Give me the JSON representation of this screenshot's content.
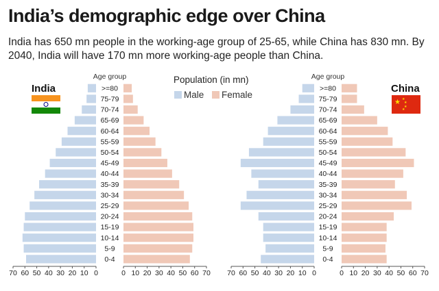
{
  "header": {
    "title": "India’s demographic edge over China",
    "subtitle": "India has 650 mn people in the working-age group of 25-65, while China has 830 mn. By 2040, India will have 170 mn more working-age people than China."
  },
  "legend": {
    "title": "Population (in mn)",
    "male": "Male",
    "female": "Female"
  },
  "colors": {
    "male": "#c5d6ea",
    "female": "#f0c8b7",
    "axis": "#555555"
  },
  "icons": [
    "india-flag-icon",
    "china-flag-icon"
  ],
  "chart_data": [
    {
      "type": "bar",
      "orientation": "horizontal-population-pyramid",
      "country": "India",
      "age_group_label": "Age group",
      "categories": [
        ">=80",
        "75-79",
        "70-74",
        "65-69",
        "60-64",
        "55-59",
        "50-54",
        "45-49",
        "40-44",
        "35-39",
        "30-34",
        "25-29",
        "20-24",
        "15-19",
        "10-14",
        "5-9",
        "0-4"
      ],
      "series": [
        {
          "name": "Male",
          "values": [
            7,
            8,
            12,
            18,
            24,
            29,
            34,
            39,
            43,
            48,
            52,
            56,
            60,
            61,
            62,
            61,
            59
          ]
        },
        {
          "name": "Female",
          "values": [
            7,
            8,
            12,
            17,
            22,
            27,
            32,
            37,
            41,
            47,
            51,
            55,
            58,
            59,
            59,
            58,
            56
          ]
        }
      ],
      "xticks_male": [
        "70",
        "60",
        "50",
        "40",
        "30",
        "20",
        "10",
        "0"
      ],
      "xticks_female": [
        "0",
        "10",
        "20",
        "30",
        "40",
        "50",
        "60",
        "70"
      ],
      "xlim": [
        0,
        70
      ]
    },
    {
      "type": "bar",
      "orientation": "horizontal-population-pyramid",
      "country": "China",
      "age_group_label": "Age group",
      "categories": [
        ">=80",
        "75-79",
        "70-74",
        "65-69",
        "60-64",
        "55-59",
        "50-54",
        "45-49",
        "40-44",
        "35-39",
        "30-34",
        "25-29",
        "20-24",
        "15-19",
        "10-14",
        "5-9",
        "0-4"
      ],
      "series": [
        {
          "name": "Male",
          "values": [
            10,
            13,
            20,
            31,
            39,
            43,
            55,
            62,
            53,
            47,
            57,
            62,
            47,
            43,
            43,
            41,
            45
          ]
        },
        {
          "name": "Female",
          "values": [
            13,
            13,
            19,
            30,
            39,
            43,
            54,
            61,
            52,
            45,
            55,
            59,
            44,
            38,
            38,
            37,
            38
          ]
        }
      ],
      "xticks_male": [
        "70",
        "60",
        "50",
        "40",
        "30",
        "20",
        "10",
        "0"
      ],
      "xticks_female": [
        "0",
        "10",
        "20",
        "30",
        "40",
        "50",
        "60",
        "70"
      ],
      "xlim": [
        0,
        70
      ]
    }
  ]
}
